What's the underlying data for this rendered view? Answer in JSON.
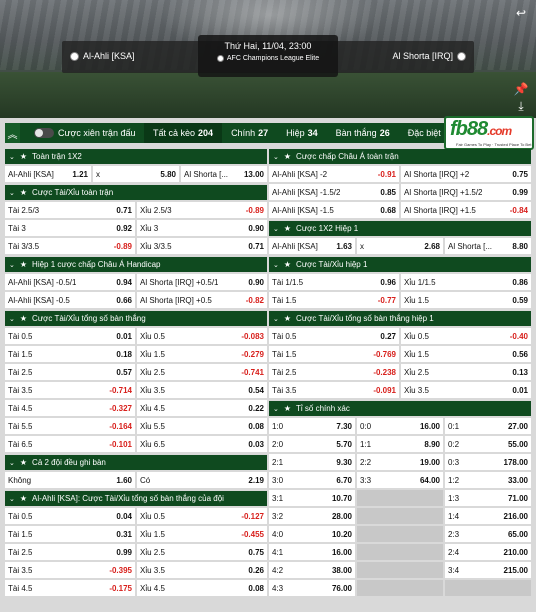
{
  "match": {
    "home": "Al-Ahli [KSA]",
    "away": "Al Shorta [IRQ]",
    "time": "Thứ Hai, 11/04, 23:00",
    "league": "AFC Champions League Elite"
  },
  "tabs": {
    "parlay": "Cược xiên trận đấu",
    "items": [
      {
        "label": "Tất cả kèo",
        "count": "204"
      },
      {
        "label": "Chính",
        "count": "27"
      },
      {
        "label": "Hiệp",
        "count": "34"
      },
      {
        "label": "Bàn thắng",
        "count": "26"
      },
      {
        "label": "Đặc biệt",
        "count": "106"
      }
    ]
  },
  "logo": {
    "text": "fb88",
    "suffix": ".com",
    "tagline": "Fair Games To Play · Trusted Place To Bet"
  },
  "colors": {
    "header": "#0f4a1f",
    "negative": "#d8201c"
  },
  "left": [
    {
      "title": "Toàn trận 1X2",
      "rows": [
        [
          [
            "Al-Ahli [KSA]",
            "1.21"
          ],
          [
            "x",
            "5.80"
          ],
          [
            "Al Shorta [...",
            "13.00"
          ]
        ]
      ]
    },
    {
      "title": "Cược Tài/Xỉu toàn trận",
      "rows": [
        [
          [
            "Tài 2.5/3",
            "0.71"
          ],
          [
            "Xỉu 2.5/3",
            "-0.89"
          ]
        ],
        [
          [
            "Tài 3",
            "0.92"
          ],
          [
            "Xỉu 3",
            "0.90"
          ]
        ],
        [
          [
            "Tài 3/3.5",
            "-0.89"
          ],
          [
            "Xỉu 3/3.5",
            "0.71"
          ]
        ]
      ]
    },
    {
      "title": "Hiệp 1 cược chấp Châu Á Handicap",
      "rows": [
        [
          [
            "Al-Ahli [KSA] -0.5/1",
            "0.94"
          ],
          [
            "Al Shorta [IRQ] +0.5/1",
            "0.90"
          ]
        ],
        [
          [
            "Al-Ahli [KSA] -0.5",
            "0.66"
          ],
          [
            "Al Shorta [IRQ] +0.5",
            "-0.82"
          ]
        ]
      ]
    },
    {
      "title": "Cược Tài/Xỉu tổng số bàn thắng",
      "rows": [
        [
          [
            "Tài 0.5",
            "0.01"
          ],
          [
            "Xỉu 0.5",
            "-0.083"
          ]
        ],
        [
          [
            "Tài 1.5",
            "0.18"
          ],
          [
            "Xỉu 1.5",
            "-0.279"
          ]
        ],
        [
          [
            "Tài 2.5",
            "0.57"
          ],
          [
            "Xỉu 2.5",
            "-0.741"
          ]
        ],
        [
          [
            "Tài 3.5",
            "-0.714"
          ],
          [
            "Xỉu 3.5",
            "0.54"
          ]
        ],
        [
          [
            "Tài 4.5",
            "-0.327"
          ],
          [
            "Xỉu 4.5",
            "0.22"
          ]
        ],
        [
          [
            "Tài 5.5",
            "-0.164"
          ],
          [
            "Xỉu 5.5",
            "0.08"
          ]
        ],
        [
          [
            "Tài 6.5",
            "-0.101"
          ],
          [
            "Xỉu 6.5",
            "0.03"
          ]
        ]
      ]
    },
    {
      "title": "Cả 2 đội đều ghi bàn",
      "rows": [
        [
          [
            "Không",
            "1.60"
          ],
          [
            "Có",
            "2.19"
          ]
        ]
      ]
    },
    {
      "title": "Al-Ahli [KSA]: Cược Tài/Xỉu tổng số bàn thắng của đội",
      "rows": [
        [
          [
            "Tài 0.5",
            "0.04"
          ],
          [
            "Xỉu 0.5",
            "-0.127"
          ]
        ],
        [
          [
            "Tài 1.5",
            "0.31"
          ],
          [
            "Xỉu 1.5",
            "-0.455"
          ]
        ],
        [
          [
            "Tài 2.5",
            "0.99"
          ],
          [
            "Xỉu 2.5",
            "0.75"
          ]
        ],
        [
          [
            "Tài 3.5",
            "-0.395"
          ],
          [
            "Xỉu 3.5",
            "0.26"
          ]
        ],
        [
          [
            "Tài 4.5",
            "-0.175"
          ],
          [
            "Xỉu 4.5",
            "0.08"
          ]
        ]
      ]
    }
  ],
  "right": [
    {
      "title": "Cược chấp Châu Á toàn trận",
      "rows": [
        [
          [
            "Al-Ahli [KSA] -2",
            "-0.91"
          ],
          [
            "Al Shorta [IRQ] +2",
            "0.75"
          ]
        ],
        [
          [
            "Al-Ahli [KSA] -1.5/2",
            "0.85"
          ],
          [
            "Al Shorta [IRQ] +1.5/2",
            "0.99"
          ]
        ],
        [
          [
            "Al-Ahli [KSA] -1.5",
            "0.68"
          ],
          [
            "Al Shorta [IRQ] +1.5",
            "-0.84"
          ]
        ]
      ]
    },
    {
      "title": "Cược 1X2 Hiệp 1",
      "rows": [
        [
          [
            "Al-Ahli [KSA]",
            "1.63"
          ],
          [
            "x",
            "2.68"
          ],
          [
            "Al Shorta [...",
            "8.80"
          ]
        ]
      ]
    },
    {
      "title": "Cược Tài/Xỉu hiệp 1",
      "rows": [
        [
          [
            "Tài 1/1.5",
            "0.96"
          ],
          [
            "Xỉu 1/1.5",
            "0.86"
          ]
        ],
        [
          [
            "Tài 1.5",
            "-0.77"
          ],
          [
            "Xỉu 1.5",
            "0.59"
          ]
        ]
      ]
    },
    {
      "title": "Cược Tài/Xỉu tổng số bàn thắng hiệp 1",
      "rows": [
        [
          [
            "Tài 0.5",
            "0.27"
          ],
          [
            "Xỉu 0.5",
            "-0.40"
          ]
        ],
        [
          [
            "Tài 1.5",
            "-0.769"
          ],
          [
            "Xỉu 1.5",
            "0.56"
          ]
        ],
        [
          [
            "Tài 2.5",
            "-0.238"
          ],
          [
            "Xỉu 2.5",
            "0.13"
          ]
        ],
        [
          [
            "Tài 3.5",
            "-0.091"
          ],
          [
            "Xỉu 3.5",
            "0.01"
          ]
        ]
      ]
    },
    {
      "title": "Tỉ số chính xác",
      "rows": [
        [
          [
            "1:0",
            "7.30"
          ],
          [
            "0:0",
            "16.00"
          ],
          [
            "0:1",
            "27.00"
          ]
        ],
        [
          [
            "2:0",
            "5.70"
          ],
          [
            "1:1",
            "8.90"
          ],
          [
            "0:2",
            "55.00"
          ]
        ],
        [
          [
            "2:1",
            "9.30"
          ],
          [
            "2:2",
            "19.00"
          ],
          [
            "0:3",
            "178.00"
          ]
        ],
        [
          [
            "3:0",
            "6.70"
          ],
          [
            "3:3",
            "64.00"
          ],
          [
            "1:2",
            "33.00"
          ]
        ],
        [
          [
            "3:1",
            "10.70"
          ],
          [
            "",
            ""
          ],
          [
            "1:3",
            "71.00"
          ]
        ],
        [
          [
            "3:2",
            "28.00"
          ],
          [
            "",
            ""
          ],
          [
            "1:4",
            "216.00"
          ]
        ],
        [
          [
            "4:0",
            "10.20"
          ],
          [
            "",
            ""
          ],
          [
            "2:3",
            "65.00"
          ]
        ],
        [
          [
            "4:1",
            "16.00"
          ],
          [
            "",
            ""
          ],
          [
            "2:4",
            "210.00"
          ]
        ],
        [
          [
            "4:2",
            "38.00"
          ],
          [
            "",
            ""
          ],
          [
            "3:4",
            "215.00"
          ]
        ],
        [
          [
            "4:3",
            "76.00"
          ],
          [
            "",
            ""
          ],
          [
            "",
            ""
          ]
        ]
      ]
    }
  ]
}
